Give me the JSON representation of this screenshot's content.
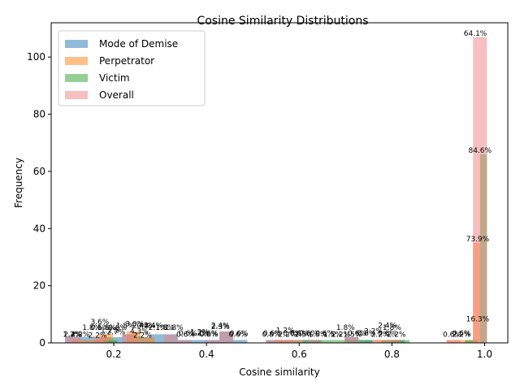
{
  "chart_data": {
    "type": "bar",
    "title": "Cosine Similarity Distributions",
    "xlabel": "Cosine similarity",
    "ylabel": "Frequency",
    "xlim": [
      0.065,
      1.05
    ],
    "ylim": [
      0,
      112
    ],
    "x_ticks": [
      0.2,
      0.4,
      0.6,
      0.8,
      1.0
    ],
    "x_tick_labels": [
      "0.2",
      "0.4",
      "0.6",
      "0.8",
      "1.0"
    ],
    "y_ticks": [
      0,
      20,
      40,
      60,
      80,
      100
    ],
    "y_tick_labels": [
      "0",
      "20",
      "40",
      "60",
      "80",
      "100"
    ],
    "legend_position": "top-left",
    "grid": false,
    "series": [
      {
        "name": "Mode of Demise",
        "color": "#1f77b4",
        "bars": [
          {
            "x0": 0.095,
            "x1": 0.128,
            "value": 2
          },
          {
            "x0": 0.128,
            "x1": 0.158,
            "value": 2
          },
          {
            "x0": 0.158,
            "x1": 0.188,
            "value": 2
          },
          {
            "x0": 0.188,
            "x1": 0.218,
            "value": 2
          },
          {
            "x0": 0.218,
            "x1": 0.248,
            "value": 3
          },
          {
            "x0": 0.248,
            "x1": 0.278,
            "value": 2
          },
          {
            "x0": 0.278,
            "x1": 0.308,
            "value": 3
          },
          {
            "x0": 0.308,
            "x1": 0.338,
            "value": 3
          },
          {
            "x0": 0.338,
            "x1": 0.368,
            "value": 1
          },
          {
            "x0": 0.368,
            "x1": 0.398,
            "value": 1
          },
          {
            "x0": 0.398,
            "x1": 0.428,
            "value": 1
          },
          {
            "x0": 0.428,
            "x1": 0.458,
            "value": 4
          },
          {
            "x0": 0.458,
            "x1": 0.488,
            "value": 1
          },
          {
            "x0": 0.528,
            "x1": 0.558,
            "value": 1
          },
          {
            "x0": 0.558,
            "x1": 0.588,
            "value": 1
          },
          {
            "x0": 0.588,
            "x1": 0.618,
            "value": 1
          },
          {
            "x0": 0.618,
            "x1": 0.648,
            "value": 1
          },
          {
            "x0": 0.698,
            "x1": 0.728,
            "value": 2
          },
          {
            "x0": 0.728,
            "x1": 0.758,
            "value": 1
          },
          {
            "x0": 0.798,
            "x1": 0.828,
            "value": 1
          },
          {
            "x0": 0.975,
            "x1": 0.985,
            "value": 1
          }
        ]
      },
      {
        "name": "Perpetrator",
        "color": "#ff7f0e",
        "bars": [
          {
            "x0": 0.108,
            "x1": 0.138,
            "value": 1
          },
          {
            "x0": 0.138,
            "x1": 0.168,
            "value": 1
          },
          {
            "x0": 0.168,
            "x1": 0.198,
            "value": 3
          },
          {
            "x0": 0.228,
            "x1": 0.258,
            "value": 4
          },
          {
            "x0": 0.258,
            "x1": 0.288,
            "value": 2
          },
          {
            "x0": 0.548,
            "x1": 0.578,
            "value": 1
          },
          {
            "x0": 0.578,
            "x1": 0.608,
            "value": 1
          },
          {
            "x0": 0.758,
            "x1": 0.788,
            "value": 1
          },
          {
            "x0": 0.788,
            "x1": 0.818,
            "value": 1
          },
          {
            "x0": 0.918,
            "x1": 0.948,
            "value": 1
          },
          {
            "x0": 0.948,
            "x1": 0.975,
            "value": 1
          },
          {
            "x0": 0.975,
            "x1": 0.99,
            "value": 35
          }
        ]
      },
      {
        "name": "Victim",
        "color": "#2ca02c",
        "bars": [
          {
            "x0": 0.178,
            "x1": 0.208,
            "value": 1
          },
          {
            "x0": 0.608,
            "x1": 0.638,
            "value": 1
          },
          {
            "x0": 0.638,
            "x1": 0.668,
            "value": 1
          },
          {
            "x0": 0.668,
            "x1": 0.698,
            "value": 1
          },
          {
            "x0": 0.698,
            "x1": 0.728,
            "value": 1
          },
          {
            "x0": 0.728,
            "x1": 0.758,
            "value": 1
          },
          {
            "x0": 0.778,
            "x1": 0.808,
            "value": 1
          },
          {
            "x0": 0.808,
            "x1": 0.838,
            "value": 1
          },
          {
            "x0": 0.958,
            "x1": 0.975,
            "value": 1
          },
          {
            "x0": 0.99,
            "x1": 1.005,
            "value": 66
          }
        ]
      },
      {
        "name": "Overall",
        "color": "#f08080",
        "bars": [
          {
            "x0": 0.095,
            "x1": 0.128,
            "value": 2
          },
          {
            "x0": 0.158,
            "x1": 0.188,
            "value": 2
          },
          {
            "x0": 0.218,
            "x1": 0.248,
            "value": 3
          },
          {
            "x0": 0.308,
            "x1": 0.338,
            "value": 3
          },
          {
            "x0": 0.338,
            "x1": 0.368,
            "value": 1
          },
          {
            "x0": 0.398,
            "x1": 0.428,
            "value": 1
          },
          {
            "x0": 0.428,
            "x1": 0.458,
            "value": 4
          },
          {
            "x0": 0.528,
            "x1": 0.558,
            "value": 1
          },
          {
            "x0": 0.558,
            "x1": 0.588,
            "value": 1
          },
          {
            "x0": 0.618,
            "x1": 0.648,
            "value": 1
          },
          {
            "x0": 0.698,
            "x1": 0.728,
            "value": 2
          },
          {
            "x0": 0.758,
            "x1": 0.788,
            "value": 1
          },
          {
            "x0": 0.788,
            "x1": 0.818,
            "value": 1
          },
          {
            "x0": 0.918,
            "x1": 0.948,
            "value": 1
          },
          {
            "x0": 0.975,
            "x1": 1.005,
            "value": 107
          }
        ]
      }
    ],
    "annotations": [
      {
        "x": 0.11,
        "y": 2.2,
        "text": "1.2%"
      },
      {
        "x": 0.112,
        "y": 2.2,
        "text": "2.4%"
      },
      {
        "x": 0.128,
        "y": 2.2,
        "text": "2.2%"
      },
      {
        "x": 0.152,
        "y": 4.6,
        "text": "1.8%"
      },
      {
        "x": 0.165,
        "y": 1.8,
        "text": "2.2%"
      },
      {
        "x": 0.17,
        "y": 6.6,
        "text": "3.6%"
      },
      {
        "x": 0.17,
        "y": 4.6,
        "text": "0.6%"
      },
      {
        "x": 0.185,
        "y": 4.6,
        "text": "1.8%"
      },
      {
        "x": 0.192,
        "y": 3.6,
        "text": "1.2%"
      },
      {
        "x": 0.205,
        "y": 3.0,
        "text": "2.7%"
      },
      {
        "x": 0.208,
        "y": 4.6,
        "text": "0.6%"
      },
      {
        "x": 0.225,
        "y": 5.2,
        "text": "1.8%"
      },
      {
        "x": 0.245,
        "y": 5.8,
        "text": "3.0%"
      },
      {
        "x": 0.255,
        "y": 3.2,
        "text": "4.3%"
      },
      {
        "x": 0.26,
        "y": 5.2,
        "text": "2.4%"
      },
      {
        "x": 0.27,
        "y": 5.2,
        "text": "0.4%"
      },
      {
        "x": 0.285,
        "y": 5.2,
        "text": "2.4%"
      },
      {
        "x": 0.295,
        "y": 4.6,
        "text": "2.1%"
      },
      {
        "x": 0.262,
        "y": 1.8,
        "text": "2.2%"
      },
      {
        "x": 0.31,
        "y": 4.6,
        "text": "1.8%"
      },
      {
        "x": 0.33,
        "y": 4.6,
        "text": "1.8%"
      },
      {
        "x": 0.355,
        "y": 2.2,
        "text": "0.6%"
      },
      {
        "x": 0.36,
        "y": 2.6,
        "text": "0.6%"
      },
      {
        "x": 0.385,
        "y": 3.0,
        "text": "1.2%"
      },
      {
        "x": 0.385,
        "y": 2.6,
        "text": "1.2%"
      },
      {
        "x": 0.405,
        "y": 2.2,
        "text": "0.8%"
      },
      {
        "x": 0.405,
        "y": 2.6,
        "text": "0.6%"
      },
      {
        "x": 0.43,
        "y": 5.2,
        "text": "2.4%"
      },
      {
        "x": 0.43,
        "y": 4.8,
        "text": "2.3%"
      },
      {
        "x": 0.468,
        "y": 2.2,
        "text": "0.6%"
      },
      {
        "x": 0.47,
        "y": 2.6,
        "text": "0.6%"
      },
      {
        "x": 0.54,
        "y": 2.2,
        "text": "0.8%"
      },
      {
        "x": 0.542,
        "y": 2.6,
        "text": "0.6%"
      },
      {
        "x": 0.57,
        "y": 3.6,
        "text": "1.2%"
      },
      {
        "x": 0.575,
        "y": 2.2,
        "text": "2.2%"
      },
      {
        "x": 0.585,
        "y": 2.6,
        "text": "0.6%"
      },
      {
        "x": 0.6,
        "y": 2.6,
        "text": "0.6%"
      },
      {
        "x": 0.61,
        "y": 2.2,
        "text": "1.5%"
      },
      {
        "x": 0.62,
        "y": 2.6,
        "text": "0.6%"
      },
      {
        "x": 0.64,
        "y": 2.2,
        "text": "1.5%"
      },
      {
        "x": 0.655,
        "y": 2.6,
        "text": "0.6%"
      },
      {
        "x": 0.672,
        "y": 2.2,
        "text": "1.5%"
      },
      {
        "x": 0.69,
        "y": 2.2,
        "text": "2.2%"
      },
      {
        "x": 0.7,
        "y": 4.6,
        "text": "1.8%"
      },
      {
        "x": 0.715,
        "y": 2.2,
        "text": "1.5%"
      },
      {
        "x": 0.725,
        "y": 2.6,
        "text": "0.6%"
      },
      {
        "x": 0.745,
        "y": 2.6,
        "text": "0.6%"
      },
      {
        "x": 0.76,
        "y": 3.2,
        "text": "3.2%"
      },
      {
        "x": 0.775,
        "y": 2.2,
        "text": "2.2%"
      },
      {
        "x": 0.79,
        "y": 5.2,
        "text": "2.4%"
      },
      {
        "x": 0.8,
        "y": 4.6,
        "text": "1.8%"
      },
      {
        "x": 0.79,
        "y": 2.6,
        "text": "0.6%"
      },
      {
        "x": 0.81,
        "y": 2.2,
        "text": "2.2%"
      },
      {
        "x": 0.93,
        "y": 2.2,
        "text": "0.6%"
      },
      {
        "x": 0.95,
        "y": 2.2,
        "text": "2.2%"
      },
      {
        "x": 0.95,
        "y": 2.6,
        "text": "0.6%"
      },
      {
        "x": 0.98,
        "y": 107.5,
        "text": "64.1%"
      },
      {
        "x": 0.99,
        "y": 66.5,
        "text": "84.6%"
      },
      {
        "x": 0.985,
        "y": 35.5,
        "text": "73.9%"
      },
      {
        "x": 0.985,
        "y": 7.5,
        "text": "16.3%"
      }
    ]
  }
}
